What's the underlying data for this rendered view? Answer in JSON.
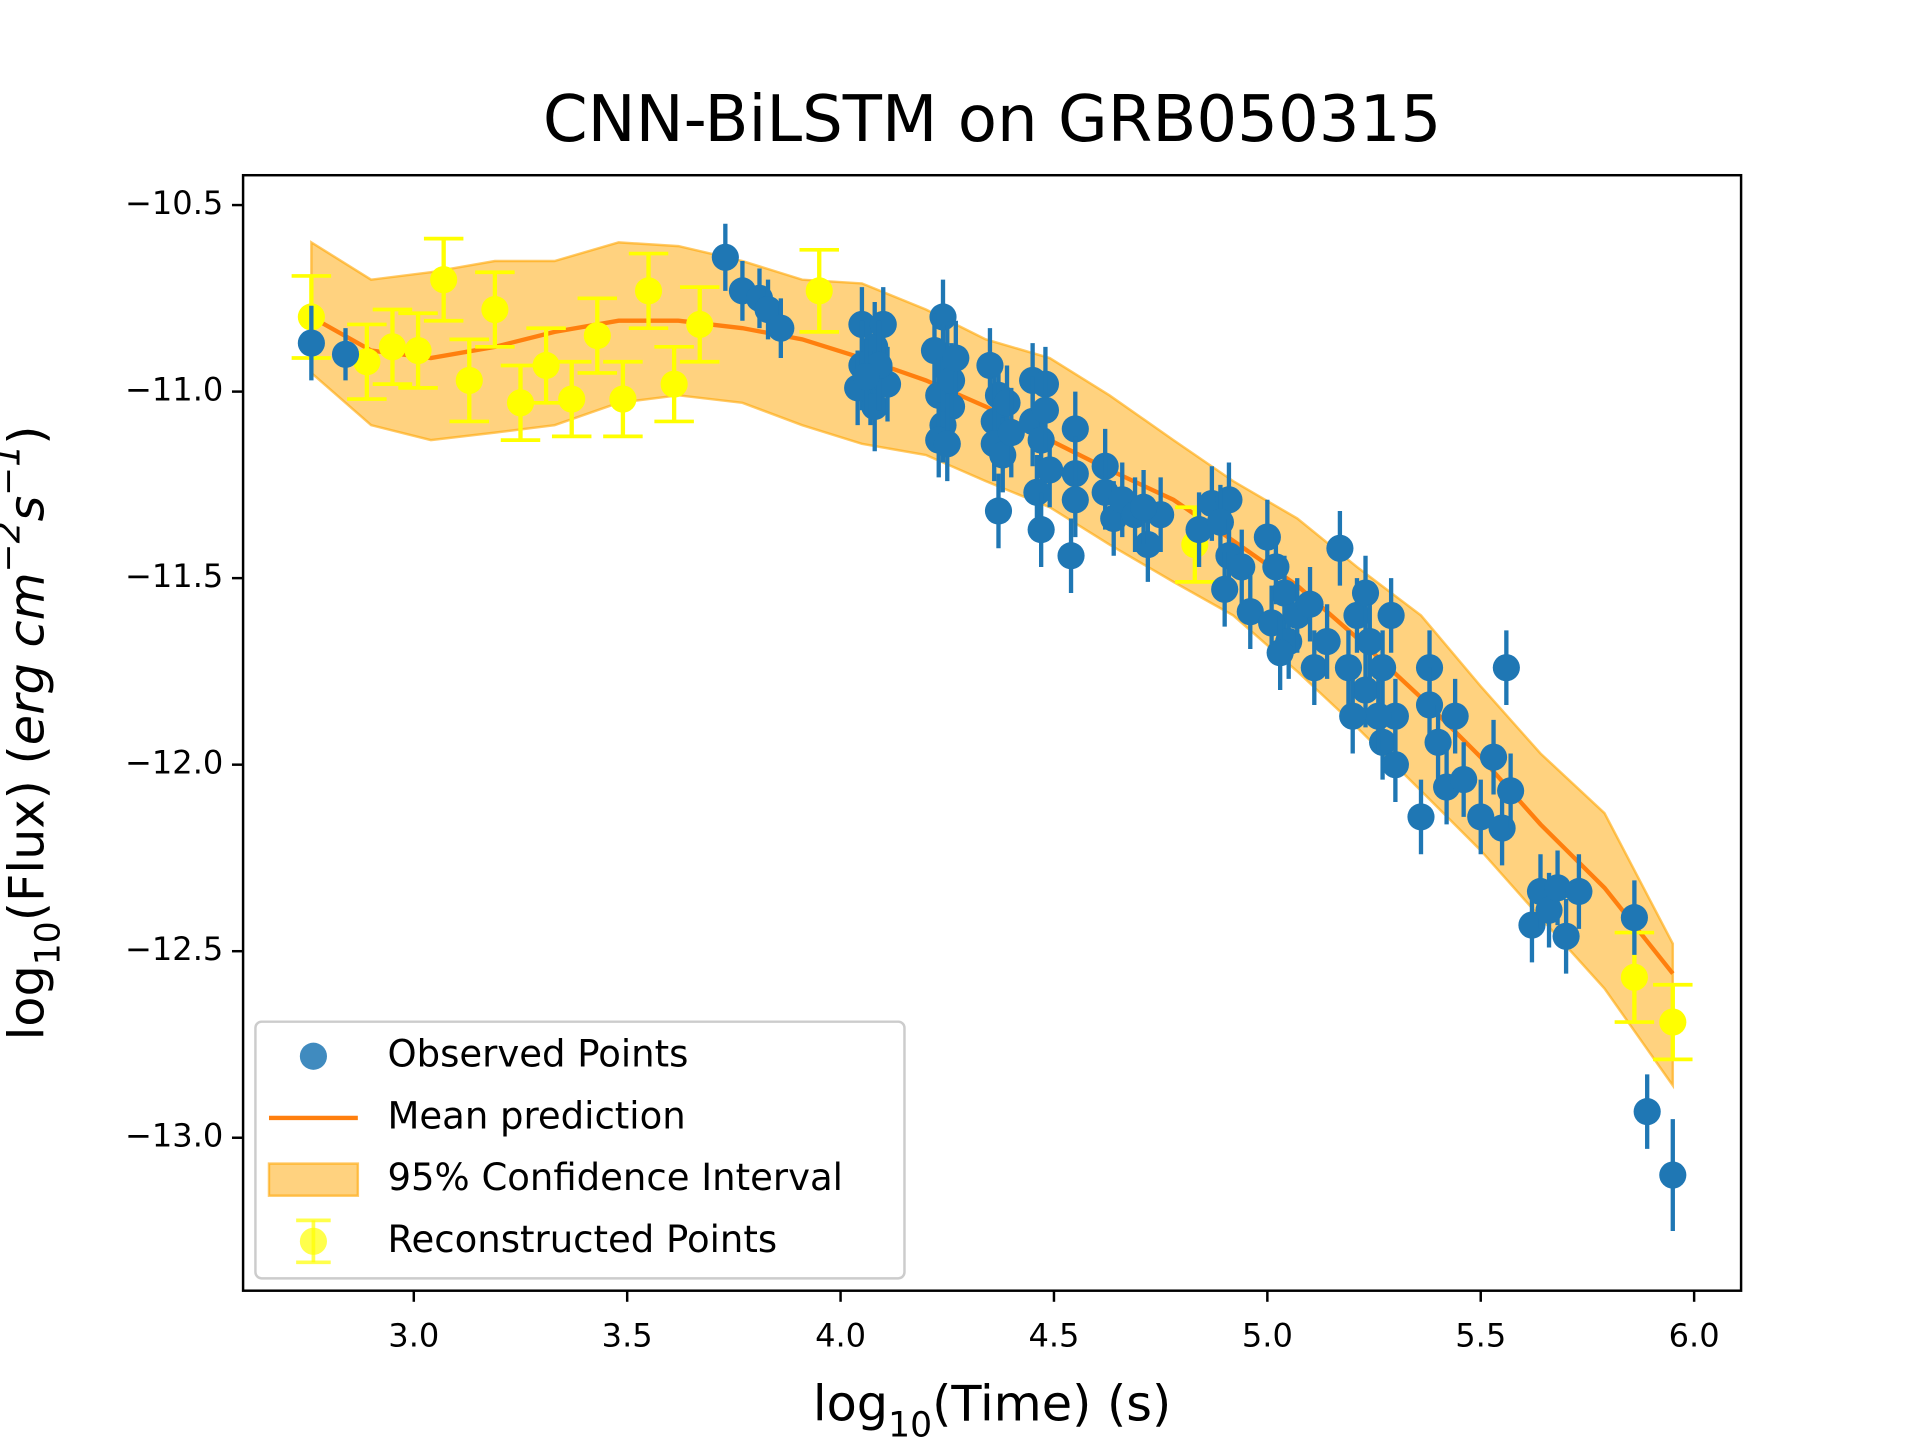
{
  "chart_data": {
    "type": "scatter",
    "title": "CNN-BiLSTM on GRB050315",
    "xlabel": [
      "log",
      "10",
      "(Time) (s)"
    ],
    "ylabel": [
      "log",
      "10",
      "(Flux) (",
      "erg cm",
      "−2",
      "s",
      "−1",
      ")"
    ],
    "xlim": [
      2.6,
      6.11
    ],
    "ylim": [
      -13.41,
      -10.42
    ],
    "xticks": [
      {
        "value": 3,
        "label": "3.0"
      },
      3.5,
      {
        "value": 4,
        "label": "4.0"
      },
      4.5,
      {
        "value": 5,
        "label": "5.0"
      },
      5.5,
      {
        "value": 6,
        "label": "6.0"
      }
    ],
    "yticks": [
      {
        "value": -10.5,
        "label": "−10.5"
      },
      {
        "value": -11,
        "label": "−11.0"
      },
      {
        "value": -11.5,
        "label": "−11.5"
      },
      {
        "value": -12,
        "label": "−12.0"
      },
      {
        "value": -12.5,
        "label": "−12.5"
      },
      {
        "value": -13,
        "label": "−13.0"
      }
    ],
    "legend": "lower left",
    "series": [
      {
        "name": "Observed Points",
        "type": "errorbar",
        "color": "#1f77b4",
        "x": [
          2.76,
          2.84,
          3.73,
          3.77,
          3.81,
          3.83,
          3.86,
          4.05,
          4.08,
          4.1,
          4.05,
          4.07,
          4.09,
          4.04,
          4.08,
          4.11,
          4.09,
          4.06,
          4.24,
          4.22,
          4.25,
          4.23,
          4.26,
          4.24,
          4.26,
          4.23,
          4.25,
          4.27,
          4.35,
          4.37,
          4.36,
          4.39,
          4.36,
          4.38,
          4.37,
          4.4,
          4.45,
          4.48,
          4.45,
          4.47,
          4.49,
          4.46,
          4.47,
          4.48,
          4.55,
          4.54,
          4.55,
          4.55,
          4.62,
          4.62,
          4.64,
          4.66,
          4.69,
          4.72,
          4.75,
          4.71,
          4.84,
          4.87,
          4.91,
          4.89,
          4.91,
          4.9,
          4.94,
          4.96,
          5.0,
          5.02,
          5.04,
          5.01,
          5.05,
          5.07,
          5.03,
          5.1,
          5.11,
          5.14,
          5.17,
          5.19,
          5.21,
          5.23,
          5.23,
          5.24,
          5.27,
          5.29,
          5.3,
          5.27,
          5.26,
          5.3,
          5.2,
          5.36,
          5.38,
          5.38,
          5.4,
          5.42,
          5.44,
          5.46,
          5.5,
          5.53,
          5.55,
          5.56,
          5.57,
          5.62,
          5.64,
          5.66,
          5.68,
          5.7,
          5.73,
          5.86,
          5.89,
          5.95
        ],
        "values": [
          -10.87,
          -10.9,
          -10.64,
          -10.73,
          -10.75,
          -10.78,
          -10.83,
          -10.82,
          -10.88,
          -10.82,
          -10.93,
          -10.99,
          -10.94,
          -10.99,
          -11.04,
          -10.98,
          -10.93,
          -10.96,
          -10.8,
          -10.89,
          -10.94,
          -11.01,
          -11.04,
          -11.09,
          -10.97,
          -11.13,
          -11.14,
          -10.91,
          -10.93,
          -11.01,
          -11.08,
          -11.03,
          -11.14,
          -11.17,
          -11.32,
          -11.11,
          -10.97,
          -10.98,
          -11.08,
          -11.13,
          -11.21,
          -11.27,
          -11.37,
          -11.05,
          -11.1,
          -11.44,
          -11.22,
          -11.29,
          -11.2,
          -11.27,
          -11.34,
          -11.29,
          -11.33,
          -11.41,
          -11.33,
          -11.31,
          -11.37,
          -11.3,
          -11.29,
          -11.35,
          -11.44,
          -11.53,
          -11.47,
          -11.59,
          -11.39,
          -11.47,
          -11.54,
          -11.62,
          -11.67,
          -11.6,
          -11.7,
          -11.57,
          -11.74,
          -11.67,
          -11.42,
          -11.74,
          -11.6,
          -11.54,
          -11.8,
          -11.67,
          -11.94,
          -11.6,
          -11.87,
          -11.74,
          -11.87,
          -12.0,
          -11.87,
          -12.14,
          -11.74,
          -11.84,
          -11.94,
          -12.06,
          -11.87,
          -12.04,
          -12.14,
          -11.98,
          -12.17,
          -11.74,
          -12.07,
          -12.43,
          -12.34,
          -12.39,
          -12.33,
          -12.46,
          -12.34,
          -12.41,
          -12.93,
          -13.1
        ],
        "yerr": [
          0.1,
          0.07,
          0.09,
          0.08,
          0.08,
          0.08,
          0.08,
          0.1,
          0.12,
          0.1,
          0.12,
          0.1,
          0.12,
          0.1,
          0.12,
          0.1,
          0.12,
          0.1,
          0.1,
          0.1,
          0.12,
          0.1,
          0.12,
          0.1,
          0.1,
          0.1,
          0.1,
          0.1,
          0.1,
          0.1,
          0.12,
          0.1,
          0.1,
          0.1,
          0.1,
          0.12,
          0.1,
          0.1,
          0.12,
          0.1,
          0.1,
          0.1,
          0.1,
          0.1,
          0.1,
          0.1,
          0.1,
          0.1,
          0.1,
          0.1,
          0.1,
          0.1,
          0.1,
          0.1,
          0.1,
          0.1,
          0.1,
          0.1,
          0.1,
          0.1,
          0.1,
          0.1,
          0.1,
          0.1,
          0.1,
          0.1,
          0.1,
          0.1,
          0.1,
          0.1,
          0.1,
          0.1,
          0.1,
          0.1,
          0.1,
          0.1,
          0.1,
          0.1,
          0.1,
          0.1,
          0.1,
          0.1,
          0.1,
          0.1,
          0.1,
          0.1,
          0.1,
          0.1,
          0.1,
          0.1,
          0.1,
          0.1,
          0.1,
          0.1,
          0.1,
          0.1,
          0.1,
          0.1,
          0.1,
          0.1,
          0.1,
          0.1,
          0.1,
          0.1,
          0.1,
          0.1,
          0.1,
          0.15
        ]
      },
      {
        "name": "Mean prediction",
        "type": "line",
        "color": "#ff7f0e",
        "x": [
          2.76,
          2.9,
          3.04,
          3.19,
          3.33,
          3.48,
          3.62,
          3.77,
          3.91,
          4.05,
          4.2,
          4.34,
          4.49,
          4.63,
          4.78,
          4.92,
          5.07,
          5.21,
          5.36,
          5.5,
          5.64,
          5.79,
          5.95
        ],
        "values": [
          -10.8,
          -10.89,
          -10.91,
          -10.88,
          -10.84,
          -10.81,
          -10.81,
          -10.83,
          -10.86,
          -10.91,
          -10.97,
          -11.04,
          -11.13,
          -11.21,
          -11.29,
          -11.4,
          -11.52,
          -11.66,
          -11.82,
          -11.98,
          -12.16,
          -12.33,
          -12.56
        ]
      },
      {
        "name": "95% Confidence Interval",
        "type": "band",
        "color": "#ffa500",
        "x": [
          2.76,
          2.9,
          3.04,
          3.19,
          3.33,
          3.48,
          3.62,
          3.77,
          3.91,
          4.05,
          4.2,
          4.34,
          4.49,
          4.63,
          4.78,
          4.92,
          5.07,
          5.21,
          5.36,
          5.5,
          5.64,
          5.79,
          5.95
        ],
        "upper": [
          -10.6,
          -10.7,
          -10.68,
          -10.65,
          -10.65,
          -10.6,
          -10.61,
          -10.65,
          -10.7,
          -10.71,
          -10.78,
          -10.86,
          -10.91,
          -11.01,
          -11.13,
          -11.24,
          -11.34,
          -11.47,
          -11.6,
          -11.79,
          -11.97,
          -12.13,
          -12.48
        ],
        "lower": [
          -10.95,
          -11.09,
          -11.13,
          -11.11,
          -11.09,
          -11.03,
          -11.01,
          -11.03,
          -11.09,
          -11.14,
          -11.17,
          -11.24,
          -11.31,
          -11.41,
          -11.51,
          -11.6,
          -11.75,
          -11.9,
          -12.07,
          -12.23,
          -12.41,
          -12.6,
          -12.86
        ]
      },
      {
        "name": "Reconstructed Points",
        "type": "errorbar-caps",
        "color": "#ffff00",
        "x": [
          2.76,
          2.89,
          2.95,
          3.01,
          3.07,
          3.13,
          3.19,
          3.25,
          3.31,
          3.37,
          3.43,
          3.49,
          3.55,
          3.61,
          3.67,
          3.95,
          4.83,
          5.86,
          5.95
        ],
        "values": [
          -10.8,
          -10.92,
          -10.88,
          -10.89,
          -10.7,
          -10.97,
          -10.78,
          -11.03,
          -10.93,
          -11.02,
          -10.85,
          -11.02,
          -10.73,
          -10.98,
          -10.82,
          -10.73,
          -11.41,
          -12.57,
          -12.69
        ],
        "yerr": [
          0.11,
          0.1,
          0.1,
          0.1,
          0.11,
          0.11,
          0.1,
          0.1,
          0.1,
          0.1,
          0.1,
          0.1,
          0.1,
          0.1,
          0.1,
          0.11,
          0.1,
          0.12,
          0.1
        ]
      }
    ]
  }
}
